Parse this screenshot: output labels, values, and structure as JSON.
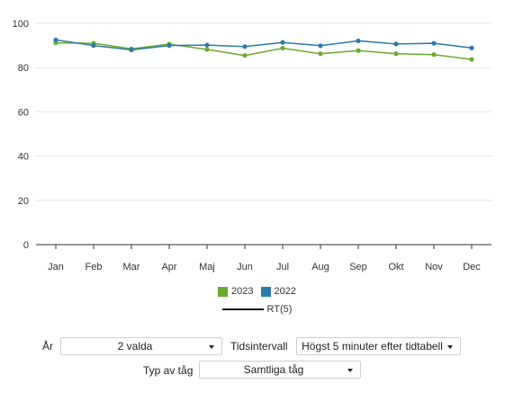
{
  "chart_data": {
    "type": "line",
    "categories": [
      "Jan",
      "Feb",
      "Mar",
      "Apr",
      "Maj",
      "Jun",
      "Jul",
      "Aug",
      "Sep",
      "Okt",
      "Nov",
      "Dec"
    ],
    "series": [
      {
        "name": "2023",
        "color": "#6aaa2e",
        "values": [
          91.2,
          91.0,
          88.5,
          90.6,
          88.2,
          85.5,
          88.8,
          86.3,
          87.7,
          86.3,
          85.9,
          83.7
        ]
      },
      {
        "name": "2022",
        "color": "#2d7aa8",
        "values": [
          92.5,
          90.0,
          88.0,
          90.0,
          90.2,
          89.5,
          91.4,
          89.9,
          92.1,
          90.7,
          91.0,
          88.9
        ]
      }
    ],
    "yticks": [
      "0",
      "20",
      "40",
      "60",
      "80",
      "100"
    ],
    "ylim": [
      0,
      100
    ],
    "grid": true,
    "legend_position": "bottom",
    "legend_line_label": "RT(5)",
    "legend_line_color": "#111111"
  },
  "controls": {
    "year": {
      "label": "År",
      "value": "2 valda"
    },
    "interval": {
      "label": "Tidsintervall",
      "value": "Högst 5 minuter efter tidtabell"
    },
    "train_type": {
      "label": "Typ av tåg",
      "value": "Samtliga tåg"
    }
  }
}
